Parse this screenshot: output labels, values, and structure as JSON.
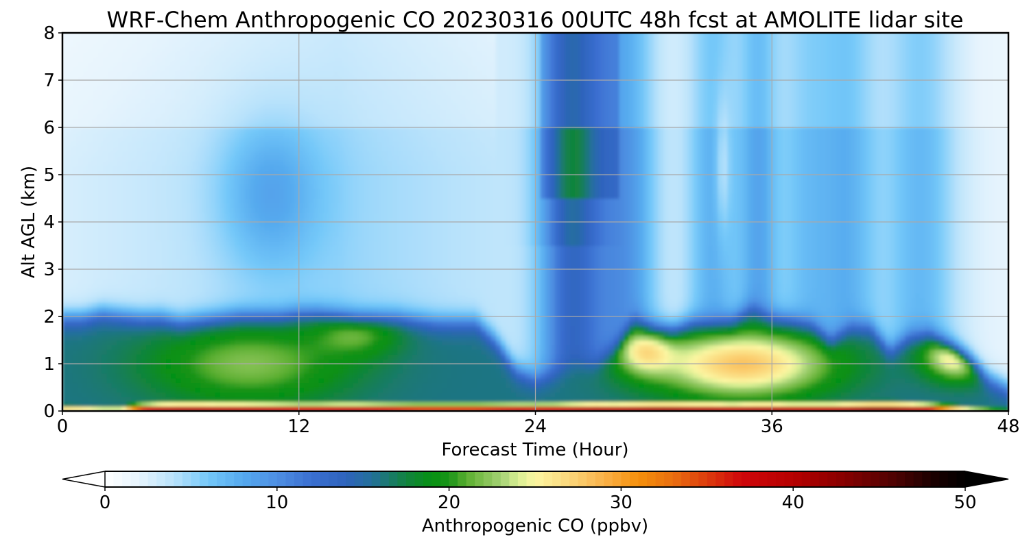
{
  "chart_data": {
    "type": "heatmap",
    "title": "WRF-Chem Anthropogenic CO  20230316 00UTC 48h fcst at AMOLITE lidar site",
    "xlabel": "Forecast Time (Hour)",
    "ylabel": "Alt AGL (km)",
    "xlim": [
      0,
      48
    ],
    "ylim": [
      0,
      8
    ],
    "xticks": [
      0,
      12,
      24,
      36,
      48
    ],
    "yticks": [
      0,
      1,
      2,
      3,
      4,
      5,
      6,
      7,
      8
    ],
    "grid": true,
    "x": [
      0,
      1,
      2,
      3,
      4,
      5,
      6,
      7,
      8,
      9,
      10,
      11,
      12,
      13,
      14,
      15,
      16,
      17,
      18,
      19,
      20,
      21,
      22,
      23,
      24,
      25,
      26,
      27,
      28,
      29,
      30,
      31,
      32,
      33,
      34,
      35,
      36,
      37,
      38,
      39,
      40,
      41,
      42,
      43,
      44,
      45,
      46,
      47,
      48
    ],
    "bl_top_km": [
      2.0,
      2.0,
      2.1,
      2.05,
      2.0,
      2.0,
      1.9,
      1.95,
      2.0,
      2.05,
      2.05,
      2.05,
      2.1,
      2.1,
      2.05,
      2.0,
      2.0,
      2.0,
      1.95,
      1.9,
      1.9,
      1.9,
      1.5,
      0.9,
      0.7,
      0.8,
      1.0,
      1.0,
      1.3,
      1.95,
      1.8,
      1.75,
      1.9,
      1.9,
      1.95,
      2.2,
      2.0,
      1.95,
      1.85,
      1.5,
      1.8,
      1.8,
      1.3,
      1.6,
      1.65,
      1.4,
      1.1,
      0.7,
      0.5
    ],
    "surface_peak_ppbv": [
      33,
      32,
      30,
      30,
      44,
      49,
      50,
      50,
      49,
      49,
      48,
      47,
      46,
      46,
      47,
      47,
      46,
      45,
      44,
      44,
      44,
      44,
      45,
      46,
      46,
      46,
      48,
      50,
      49,
      50,
      51,
      51,
      50,
      50,
      48,
      50,
      50,
      48,
      48,
      48,
      50,
      52,
      52,
      50,
      46,
      36,
      30,
      26,
      22
    ],
    "colorbar": {
      "label": "Anthropogenic CO  (ppbv)",
      "ticks": [
        0,
        10,
        20,
        30,
        40,
        50
      ],
      "range": [
        0,
        50
      ],
      "extend": "both",
      "orientation": "horizontal"
    },
    "colormap": [
      [
        0,
        "#ffffff"
      ],
      [
        2,
        "#e6f4fd"
      ],
      [
        4,
        "#b8e2fb"
      ],
      [
        6,
        "#74c8f9"
      ],
      [
        8,
        "#55a9ee"
      ],
      [
        10,
        "#4e8fe2"
      ],
      [
        12,
        "#3b6fd1"
      ],
      [
        14,
        "#2e63bc"
      ],
      [
        15.5,
        "#23709a"
      ],
      [
        17.5,
        "#128340"
      ],
      [
        19,
        "#069112"
      ],
      [
        20,
        "#1a9319"
      ],
      [
        21,
        "#5aae30"
      ],
      [
        22,
        "#82c051"
      ],
      [
        23,
        "#a3d174"
      ],
      [
        24,
        "#d8ee92"
      ],
      [
        25,
        "#fcf6a2"
      ],
      [
        27,
        "#fbd77b"
      ],
      [
        29,
        "#f9b149"
      ],
      [
        31,
        "#f5900b"
      ],
      [
        33,
        "#ea6f10"
      ],
      [
        35,
        "#dd3c0d"
      ],
      [
        37,
        "#cf060b"
      ],
      [
        40,
        "#b60000"
      ],
      [
        43,
        "#860000"
      ],
      [
        46,
        "#4b0202"
      ],
      [
        48,
        "#1c0000"
      ],
      [
        50,
        "#000000"
      ]
    ]
  }
}
